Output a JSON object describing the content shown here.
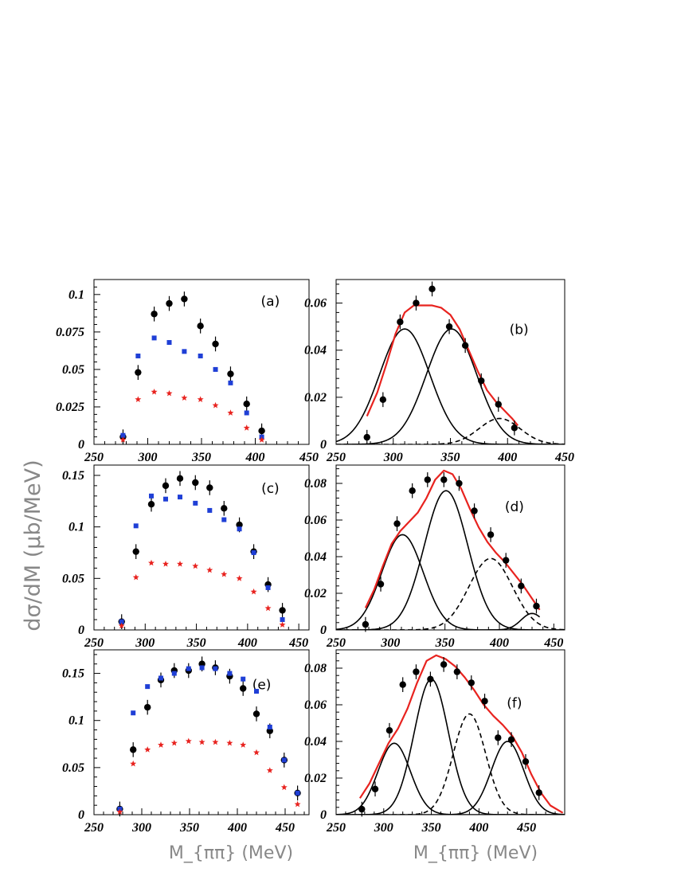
{
  "figure": {
    "ylabel": "dσ/dM  (μb/MeV)",
    "xlabel_left": "M_{ππ}  (MeV)",
    "xlabel_right": "M_{ππ}  (MeV)"
  },
  "chart_data": [
    {
      "id": "a",
      "label": "(a)",
      "type": "scatter",
      "xlim": [
        250,
        450
      ],
      "ylim": [
        0,
        0.11
      ],
      "xticks": [
        250,
        300,
        350,
        400,
        450
      ],
      "yticks": [
        0,
        0.025,
        0.05,
        0.075,
        0.1
      ],
      "ytick_labels": [
        "0",
        "0.025",
        "0.05",
        "0.075",
        "0.1"
      ],
      "series": [
        {
          "marker": "circle",
          "color": "#000000",
          "errors": true,
          "x": [
            277,
            291,
            306,
            320,
            334,
            349,
            363,
            377,
            392,
            406
          ],
          "y": [
            0.005,
            0.048,
            0.087,
            0.094,
            0.097,
            0.079,
            0.067,
            0.047,
            0.027,
            0.009
          ]
        },
        {
          "marker": "square",
          "color": "#1f3fd6",
          "x": [
            277,
            291,
            306,
            320,
            334,
            349,
            363,
            377,
            392,
            406
          ],
          "y": [
            0.006,
            0.059,
            0.071,
            0.068,
            0.062,
            0.059,
            0.05,
            0.041,
            0.021,
            0.005
          ]
        },
        {
          "marker": "star",
          "color": "#e8231f",
          "x": [
            277,
            291,
            306,
            320,
            334,
            349,
            363,
            377,
            392,
            406
          ],
          "y": [
            0.003,
            0.03,
            0.035,
            0.034,
            0.031,
            0.03,
            0.026,
            0.021,
            0.011,
            0.003
          ]
        }
      ]
    },
    {
      "id": "b",
      "label": "(b)",
      "type": "scatter",
      "xlim": [
        250,
        450
      ],
      "ylim": [
        0,
        0.07
      ],
      "xticks": [
        250,
        300,
        350,
        400,
        450
      ],
      "yticks": [
        0,
        0.02,
        0.04,
        0.06
      ],
      "ytick_labels": [
        "0",
        "0.02",
        "0.04",
        "0.06"
      ],
      "series": [
        {
          "marker": "circle",
          "color": "#000000",
          "errors": true,
          "x": [
            277,
            291,
            306,
            320,
            334,
            349,
            363,
            377,
            392,
            406
          ],
          "y": [
            0.003,
            0.019,
            0.052,
            0.06,
            0.066,
            0.05,
            0.042,
            0.027,
            0.017,
            0.007
          ]
        }
      ],
      "curves": [
        {
          "kind": "gauss",
          "style": "solid",
          "color": "#000000",
          "amp": 0.049,
          "mean": 310,
          "sigma": 22
        },
        {
          "kind": "gauss",
          "style": "solid",
          "color": "#000000",
          "amp": 0.049,
          "mean": 351,
          "sigma": 22
        },
        {
          "kind": "gauss",
          "style": "dashed",
          "color": "#000000",
          "amp": 0.011,
          "mean": 393,
          "sigma": 18
        },
        {
          "kind": "sum",
          "style": "solid",
          "color": "#e8231f",
          "width": 2.2,
          "xrange": [
            277,
            409
          ],
          "x": [
            277,
            286,
            294,
            302,
            310,
            318,
            326,
            334,
            342,
            350,
            358,
            366,
            374,
            382,
            390,
            398,
            404,
            409
          ],
          "y": [
            0.012,
            0.022,
            0.034,
            0.047,
            0.056,
            0.059,
            0.059,
            0.059,
            0.058,
            0.055,
            0.049,
            0.04,
            0.031,
            0.023,
            0.018,
            0.014,
            0.011,
            0.008
          ]
        }
      ]
    },
    {
      "id": "c",
      "label": "(c)",
      "type": "scatter",
      "xlim": [
        250,
        460
      ],
      "ylim": [
        0,
        0.16
      ],
      "xticks": [
        250,
        300,
        350,
        400,
        450
      ],
      "yticks": [
        0,
        0.05,
        0.1,
        0.15
      ],
      "ytick_labels": [
        "0",
        "0.05",
        "0.1",
        "0.15"
      ],
      "series": [
        {
          "marker": "circle",
          "color": "#000000",
          "errors": true,
          "x": [
            277,
            291,
            306,
            320,
            334,
            349,
            363,
            377,
            392,
            406,
            420,
            434
          ],
          "y": [
            0.008,
            0.076,
            0.122,
            0.14,
            0.147,
            0.143,
            0.138,
            0.118,
            0.102,
            0.076,
            0.044,
            0.019
          ]
        },
        {
          "marker": "square",
          "color": "#1f3fd6",
          "x": [
            277,
            291,
            306,
            320,
            334,
            349,
            363,
            377,
            392,
            406,
            420,
            434
          ],
          "y": [
            0.008,
            0.101,
            0.13,
            0.127,
            0.129,
            0.123,
            0.116,
            0.107,
            0.098,
            0.075,
            0.041,
            0.01
          ]
        },
        {
          "marker": "star",
          "color": "#e8231f",
          "x": [
            277,
            291,
            306,
            320,
            334,
            349,
            363,
            377,
            392,
            406,
            420,
            434
          ],
          "y": [
            0.004,
            0.051,
            0.065,
            0.064,
            0.064,
            0.062,
            0.058,
            0.054,
            0.05,
            0.037,
            0.021,
            0.005
          ]
        }
      ]
    },
    {
      "id": "d",
      "label": "(d)",
      "type": "scatter",
      "xlim": [
        250,
        460
      ],
      "ylim": [
        0,
        0.09
      ],
      "xticks": [
        250,
        300,
        350,
        400,
        450
      ],
      "yticks": [
        0,
        0.02,
        0.04,
        0.06,
        0.08
      ],
      "ytick_labels": [
        "0",
        "0.02",
        "0.04",
        "0.06",
        "0.08"
      ],
      "series": [
        {
          "marker": "circle",
          "color": "#000000",
          "errors": true,
          "x": [
            277,
            291,
            306,
            320,
            334,
            349,
            363,
            377,
            392,
            406,
            420,
            434
          ],
          "y": [
            0.003,
            0.025,
            0.058,
            0.076,
            0.082,
            0.082,
            0.08,
            0.065,
            0.052,
            0.038,
            0.024,
            0.013
          ]
        }
      ],
      "curves": [
        {
          "kind": "gauss",
          "style": "solid",
          "color": "#000000",
          "amp": 0.052,
          "mean": 311,
          "sigma": 19
        },
        {
          "kind": "gauss",
          "style": "solid",
          "color": "#000000",
          "amp": 0.076,
          "mean": 351,
          "sigma": 20
        },
        {
          "kind": "gauss",
          "style": "dashed",
          "color": "#000000",
          "amp": 0.039,
          "mean": 392,
          "sigma": 20
        },
        {
          "kind": "gauss",
          "style": "solid",
          "color": "#000000",
          "amp": 0.009,
          "mean": 430,
          "sigma": 10,
          "xrange": [
            390,
            437
          ]
        },
        {
          "kind": "sum",
          "style": "solid",
          "color": "#e8231f",
          "width": 2.2,
          "xrange": [
            277,
            437
          ],
          "x": [
            277,
            285,
            293,
            301,
            309,
            317,
            325,
            333,
            341,
            349,
            357,
            365,
            373,
            381,
            389,
            397,
            405,
            413,
            421,
            429,
            437
          ],
          "y": [
            0.012,
            0.022,
            0.035,
            0.047,
            0.054,
            0.059,
            0.064,
            0.072,
            0.082,
            0.087,
            0.085,
            0.077,
            0.066,
            0.056,
            0.048,
            0.042,
            0.037,
            0.031,
            0.025,
            0.018,
            0.011
          ]
        }
      ]
    },
    {
      "id": "e",
      "label": "(e)",
      "type": "scatter",
      "xlim": [
        250,
        475
      ],
      "ylim": [
        0,
        0.175
      ],
      "xticks": [
        250,
        300,
        350,
        400,
        450
      ],
      "yticks": [
        0,
        0.05,
        0.1,
        0.15
      ],
      "ytick_labels": [
        "0",
        "0.05",
        "0.1",
        "0.15"
      ],
      "series": [
        {
          "marker": "circle",
          "color": "#000000",
          "errors": true,
          "x": [
            277,
            291,
            306,
            320,
            334,
            349,
            363,
            377,
            392,
            406,
            420,
            434,
            449,
            463
          ],
          "y": [
            0.006,
            0.069,
            0.114,
            0.143,
            0.153,
            0.153,
            0.16,
            0.156,
            0.147,
            0.134,
            0.107,
            0.089,
            0.058,
            0.023
          ]
        },
        {
          "marker": "square",
          "color": "#1f3fd6",
          "x": [
            277,
            291,
            306,
            320,
            334,
            349,
            363,
            377,
            392,
            406,
            420,
            434,
            449,
            463
          ],
          "y": [
            0.006,
            0.108,
            0.136,
            0.145,
            0.15,
            0.155,
            0.156,
            0.155,
            0.15,
            0.144,
            0.131,
            0.093,
            0.058,
            0.023
          ]
        },
        {
          "marker": "star",
          "color": "#e8231f",
          "x": [
            277,
            291,
            306,
            320,
            334,
            349,
            363,
            377,
            392,
            406,
            420,
            434,
            449,
            463
          ],
          "y": [
            0.003,
            0.054,
            0.069,
            0.074,
            0.076,
            0.078,
            0.077,
            0.077,
            0.076,
            0.074,
            0.066,
            0.047,
            0.029,
            0.011
          ]
        }
      ]
    },
    {
      "id": "f",
      "label": "(f)",
      "type": "scatter",
      "xlim": [
        250,
        490
      ],
      "ylim": [
        0,
        0.09
      ],
      "xticks": [
        250,
        300,
        350,
        400,
        450
      ],
      "yticks": [
        0,
        0.02,
        0.04,
        0.06,
        0.08
      ],
      "ytick_labels": [
        "0",
        "0.02",
        "0.04",
        "0.06",
        "0.08"
      ],
      "series": [
        {
          "marker": "circle",
          "color": "#000000",
          "errors": true,
          "x": [
            277,
            291,
            306,
            320,
            334,
            349,
            363,
            377,
            392,
            406,
            420,
            434,
            449,
            463
          ],
          "y": [
            0.003,
            0.014,
            0.046,
            0.071,
            0.078,
            0.074,
            0.082,
            0.078,
            0.072,
            0.062,
            0.042,
            0.041,
            0.029,
            0.012
          ]
        }
      ],
      "curves": [
        {
          "kind": "gauss",
          "style": "solid",
          "color": "#000000",
          "amp": 0.039,
          "mean": 311,
          "sigma": 17
        },
        {
          "kind": "gauss",
          "style": "solid",
          "color": "#000000",
          "amp": 0.074,
          "mean": 350,
          "sigma": 18
        },
        {
          "kind": "gauss",
          "style": "dashed",
          "color": "#000000",
          "amp": 0.055,
          "mean": 390,
          "sigma": 17
        },
        {
          "kind": "gauss",
          "style": "solid",
          "color": "#000000",
          "amp": 0.04,
          "mean": 430,
          "sigma": 17
        },
        {
          "kind": "sum",
          "style": "solid",
          "color": "#e8231f",
          "width": 2.2,
          "xrange": [
            275,
            488
          ],
          "x": [
            275,
            285,
            295,
            305,
            315,
            325,
            335,
            345,
            355,
            365,
            375,
            385,
            395,
            405,
            415,
            425,
            435,
            445,
            455,
            465,
            475,
            488
          ],
          "y": [
            0.009,
            0.017,
            0.028,
            0.039,
            0.047,
            0.058,
            0.072,
            0.084,
            0.087,
            0.085,
            0.081,
            0.075,
            0.068,
            0.06,
            0.054,
            0.049,
            0.043,
            0.034,
            0.022,
            0.012,
            0.005,
            0.001
          ]
        }
      ]
    }
  ]
}
